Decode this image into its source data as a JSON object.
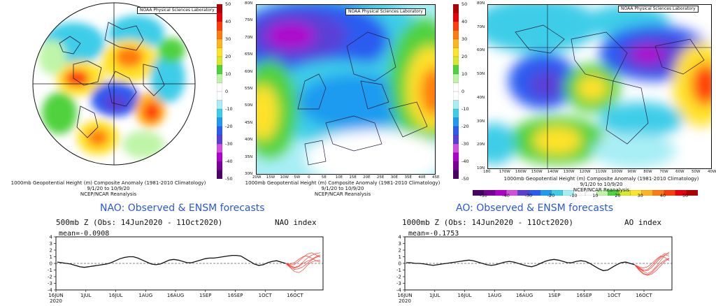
{
  "maps": {
    "left": {
      "noaa_label": "NOAA Physical Sciences Laboratory",
      "caption_line1": "1000mb Geopotential Height (m) Composite Anomaly (1981-2010 Climatology)",
      "caption_line2": "9/1/20 to 10/9/20",
      "caption_line3": "NCEP/NCAR Reanalysis"
    },
    "middle": {
      "noaa_label": "NOAA Physical Sciences Laboratory",
      "caption_line1": "1000mb Geopotential Height (m) Composite Anomaly (1981-2010 Climatology)",
      "caption_line2": "9/1/20 to 10/9/20",
      "caption_line3": "NCEP/NCAR Reanalysis",
      "lat_labels": [
        "80N",
        "75N",
        "70N",
        "65N",
        "60N",
        "55N",
        "50N",
        "45N",
        "40N",
        "35N",
        "30N"
      ],
      "lon_labels": [
        "20W",
        "15W",
        "10W",
        "5W",
        "0",
        "5E",
        "10E",
        "15E",
        "20E",
        "25E",
        "30E",
        "35E",
        "40E",
        "45E"
      ]
    },
    "right": {
      "noaa_label": "NOAA Physical Sciences Laboratory",
      "caption_line1": "1000mb Geopotential Height (m) Composite Anomaly (1981-2010 Climatology)",
      "caption_line2": "9/1/20 to 10/9/20",
      "caption_line3": "NCEP/NCAR Reanalysis",
      "lat_labels": [
        "80N",
        "70N",
        "60N",
        "50N",
        "40N",
        "30N",
        "20N",
        "10N"
      ],
      "lon_labels": [
        "180",
        "170W",
        "160W",
        "150W",
        "140W",
        "130W",
        "120W",
        "110W",
        "100W",
        "90W",
        "80W",
        "70W",
        "60W",
        "50W",
        "40W"
      ]
    }
  },
  "colorbar": {
    "labels": [
      "50",
      "40",
      "30",
      "20",
      "10",
      "0",
      "-10",
      "-20",
      "-30",
      "-40",
      "-50"
    ],
    "h_labels": [
      "-50",
      "-40",
      "-30",
      "-20",
      "-10",
      "10",
      "20",
      "30",
      "40",
      "50"
    ],
    "colors": [
      "#4a0066",
      "#7a0099",
      "#b000cc",
      "#d34fe0",
      "#5a3fd6",
      "#2b5cf0",
      "#1e9bf0",
      "#3ccde8",
      "#a8eef5",
      "#ffffff",
      "#ffffff",
      "#bff5a8",
      "#4fd23e",
      "#d8e82a",
      "#ffe22a",
      "#ffb41e",
      "#ff7a10",
      "#ff3c0a",
      "#e8000a",
      "#b00000"
    ]
  },
  "nao": {
    "title": "NAO: Observed & ENSM forecasts",
    "head_left": "500mb Z (Obs: 14Jun2020 - 11Oct2020)",
    "head_right": "NAO index",
    "mean": "mean=-0.0908",
    "y_ticks": [
      "4",
      "3",
      "2",
      "1",
      "0",
      "-1",
      "-2",
      "-3",
      "-4"
    ],
    "x_ticks": [
      "16JUN",
      "1JUL",
      "16JUL",
      "1AUG",
      "16AUG",
      "1SEP",
      "16SEP",
      "1OCT",
      "16OCT"
    ],
    "year": "2020"
  },
  "ao": {
    "title": "AO: Observed & ENSM forecasts",
    "head_left": "1000mb Z (Obs: 14Jun2020 - 11Oct2020)",
    "head_right": "AO index",
    "mean": "mean=-0.1753",
    "y_ticks": [
      "4",
      "3",
      "2",
      "1",
      "0",
      "-1",
      "-2",
      "-3",
      "-4"
    ],
    "x_ticks": [
      "16JUN",
      "1JUL",
      "16JUL",
      "1AUG",
      "16AUG",
      "1SEP",
      "16SEP",
      "1OCT",
      "16OCT"
    ],
    "year": "2020"
  },
  "chart_data": [
    {
      "type": "line",
      "title": "NAO: Observed & ENSM forecasts",
      "ylim": [
        -4,
        4
      ],
      "observed": [
        0.2,
        0.1,
        0.0,
        -0.1,
        -0.3,
        -0.5,
        -0.6,
        -0.5,
        -0.4,
        -0.3,
        -0.2,
        -0.1,
        0.1,
        0.4,
        0.7,
        0.9,
        1.0,
        1.0,
        0.8,
        0.5,
        0.2,
        -0.1,
        -0.2,
        -0.1,
        0.2,
        0.5,
        0.6,
        0.5,
        0.3,
        0.1,
        0.1,
        0.3,
        0.5,
        0.7,
        0.8,
        0.8,
        0.9,
        1.0,
        1.1,
        1.2,
        1.2,
        1.1,
        0.7,
        0.3,
        -0.1,
        -0.3,
        -0.2,
        0.1,
        0.3,
        0.4,
        0.2,
        0.0
      ],
      "forecast_members": [
        [
          0.0,
          -0.3,
          -0.6,
          -0.4,
          0.2,
          0.8,
          1.2,
          1.5,
          1.6
        ],
        [
          0.0,
          -0.5,
          -0.9,
          -0.8,
          -0.5,
          0.0,
          0.5,
          0.9,
          1.1
        ],
        [
          0.0,
          -0.2,
          -0.2,
          0.3,
          0.9,
          1.4,
          1.6,
          1.3,
          0.9
        ],
        [
          0.0,
          -0.6,
          -1.2,
          -1.4,
          -1.0,
          -0.3,
          0.2,
          0.4,
          0.5
        ],
        [
          0.0,
          -0.1,
          0.1,
          0.6,
          1.0,
          1.1,
          0.8,
          0.4,
          0.2
        ],
        [
          0.0,
          -0.4,
          -0.7,
          -0.5,
          0.0,
          0.3,
          0.6,
          1.0,
          1.3
        ]
      ]
    },
    {
      "type": "line",
      "title": "AO: Observed & ENSM forecasts",
      "ylim": [
        -4,
        4
      ],
      "observed": [
        0.1,
        0.1,
        0.0,
        0.0,
        -0.1,
        -0.2,
        -0.3,
        -0.2,
        -0.1,
        0.0,
        0.1,
        0.2,
        0.3,
        0.4,
        0.5,
        0.4,
        0.2,
        0.0,
        -0.2,
        -0.3,
        -0.2,
        0.0,
        0.2,
        0.3,
        0.2,
        0.0,
        -0.2,
        -0.4,
        -0.5,
        -0.3,
        0.0,
        0.3,
        0.5,
        0.6,
        0.5,
        0.3,
        0.1,
        0.1,
        0.3,
        0.4,
        0.3,
        0.0,
        -0.4,
        -0.8,
        -1.1,
        -1.0,
        -0.6,
        -0.2,
        0.1,
        0.2,
        0.0,
        -0.2
      ],
      "forecast_members": [
        [
          0.0,
          -0.6,
          -1.0,
          -1.3,
          -1.0,
          -0.3,
          0.6,
          1.4,
          1.9
        ],
        [
          0.0,
          -0.4,
          -0.8,
          -0.9,
          -0.4,
          0.3,
          1.0,
          1.5,
          1.3
        ],
        [
          0.0,
          -0.7,
          -1.3,
          -1.5,
          -1.2,
          -0.5,
          0.2,
          0.7,
          1.0
        ],
        [
          0.0,
          -0.3,
          -0.5,
          -0.3,
          0.2,
          0.8,
          1.3,
          1.1,
          0.6
        ],
        [
          0.0,
          -0.8,
          -1.4,
          -1.6,
          -1.4,
          -0.9,
          -0.2,
          0.5,
          0.9
        ],
        [
          0.0,
          -0.5,
          -0.9,
          -0.7,
          -0.1,
          0.6,
          1.2,
          1.7,
          1.6
        ]
      ]
    }
  ]
}
